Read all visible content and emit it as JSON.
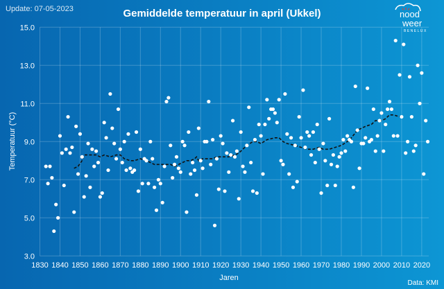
{
  "update": "Update: 07-05-2023",
  "logo": {
    "line1": "nood",
    "line2": "weer",
    "line3": "BENELUX"
  },
  "source": "Data: KMI",
  "colors": {
    "background": "#0a80c4",
    "points": "#ffffff",
    "trend": "#111111",
    "logo_accent": "#e8352b"
  },
  "chart_data": {
    "type": "scatter",
    "title": "Gemiddelde temperatuur in april (Ukkel)",
    "xlabel": "Jaren",
    "ylabel": "Temperatuur (°C)",
    "xlim": [
      1830,
      2023.5
    ],
    "ylim": [
      3.0,
      15.0
    ],
    "grid": true,
    "xticks": [
      "1830",
      "1840",
      "1850",
      "1860",
      "1870",
      "1880",
      "1890",
      "1900",
      "1910",
      "1920",
      "1930",
      "1940",
      "1950",
      "1960",
      "1970",
      "1980",
      "1990",
      "2000",
      "2010",
      "2020"
    ],
    "yticks": [
      "3.0",
      "5.0",
      "7.0",
      "9.0",
      "11.0",
      "13.0",
      "15.0"
    ],
    "points": [
      [
        1833,
        7.7
      ],
      [
        1834,
        6.8
      ],
      [
        1835,
        7.7
      ],
      [
        1836,
        7.1
      ],
      [
        1837,
        4.3
      ],
      [
        1838,
        5.7
      ],
      [
        1839,
        5.0
      ],
      [
        1840,
        9.3
      ],
      [
        1841,
        8.4
      ],
      [
        1842,
        6.7
      ],
      [
        1843,
        8.6
      ],
      [
        1844,
        10.3
      ],
      [
        1845,
        8.4
      ],
      [
        1846,
        8.7
      ],
      [
        1847,
        5.3
      ],
      [
        1848,
        9.8
      ],
      [
        1849,
        7.3
      ],
      [
        1850,
        9.4
      ],
      [
        1851,
        8.2
      ],
      [
        1852,
        6.1
      ],
      [
        1853,
        7.2
      ],
      [
        1854,
        8.9
      ],
      [
        1855,
        6.6
      ],
      [
        1856,
        8.6
      ],
      [
        1857,
        7.7
      ],
      [
        1858,
        8.5
      ],
      [
        1859,
        7.9
      ],
      [
        1860,
        6.1
      ],
      [
        1861,
        6.3
      ],
      [
        1862,
        10.0
      ],
      [
        1863,
        9.2
      ],
      [
        1864,
        7.5
      ],
      [
        1865,
        11.5
      ],
      [
        1866,
        9.7
      ],
      [
        1867,
        8.9
      ],
      [
        1868,
        8.1
      ],
      [
        1869,
        10.7
      ],
      [
        1870,
        8.6
      ],
      [
        1871,
        7.9
      ],
      [
        1872,
        9.0
      ],
      [
        1873,
        7.5
      ],
      [
        1874,
        9.4
      ],
      [
        1875,
        7.6
      ],
      [
        1876,
        7.4
      ],
      [
        1877,
        7.5
      ],
      [
        1878,
        9.5
      ],
      [
        1879,
        6.4
      ],
      [
        1880,
        8.6
      ],
      [
        1881,
        6.8
      ],
      [
        1882,
        8.1
      ],
      [
        1883,
        8.0
      ],
      [
        1884,
        6.8
      ],
      [
        1885,
        9.0
      ],
      [
        1886,
        8.1
      ],
      [
        1887,
        6.6
      ],
      [
        1888,
        5.4
      ],
      [
        1889,
        7.0
      ],
      [
        1890,
        6.8
      ],
      [
        1891,
        5.8
      ],
      [
        1892,
        7.7
      ],
      [
        1893,
        11.1
      ],
      [
        1894,
        11.3
      ],
      [
        1895,
        8.8
      ],
      [
        1896,
        7.1
      ],
      [
        1897,
        7.8
      ],
      [
        1898,
        8.2
      ],
      [
        1899,
        7.6
      ],
      [
        1900,
        7.4
      ],
      [
        1901,
        9.0
      ],
      [
        1902,
        8.8
      ],
      [
        1903,
        5.3
      ],
      [
        1904,
        9.5
      ],
      [
        1905,
        7.3
      ],
      [
        1906,
        7.9
      ],
      [
        1907,
        7.5
      ],
      [
        1908,
        6.2
      ],
      [
        1909,
        9.7
      ],
      [
        1910,
        8.0
      ],
      [
        1911,
        7.6
      ],
      [
        1912,
        9.0
      ],
      [
        1913,
        9.0
      ],
      [
        1914,
        11.1
      ],
      [
        1915,
        7.8
      ],
      [
        1916,
        9.1
      ],
      [
        1917,
        4.6
      ],
      [
        1918,
        8.1
      ],
      [
        1919,
        6.5
      ],
      [
        1920,
        9.3
      ],
      [
        1921,
        8.9
      ],
      [
        1922,
        6.4
      ],
      [
        1923,
        8.4
      ],
      [
        1924,
        7.4
      ],
      [
        1925,
        8.3
      ],
      [
        1926,
        10.1
      ],
      [
        1927,
        8.2
      ],
      [
        1928,
        8.5
      ],
      [
        1929,
        6.0
      ],
      [
        1930,
        9.5
      ],
      [
        1931,
        7.7
      ],
      [
        1932,
        7.4
      ],
      [
        1933,
        8.8
      ],
      [
        1934,
        10.8
      ],
      [
        1935,
        7.9
      ],
      [
        1936,
        6.4
      ],
      [
        1937,
        9.1
      ],
      [
        1938,
        6.3
      ],
      [
        1939,
        9.9
      ],
      [
        1940,
        9.3
      ],
      [
        1941,
        7.3
      ],
      [
        1942,
        9.9
      ],
      [
        1943,
        11.2
      ],
      [
        1944,
        10.2
      ],
      [
        1945,
        10.7
      ],
      [
        1946,
        10.7
      ],
      [
        1947,
        10.5
      ],
      [
        1948,
        10.0
      ],
      [
        1949,
        11.2
      ],
      [
        1950,
        8.0
      ],
      [
        1951,
        7.8
      ],
      [
        1952,
        11.5
      ],
      [
        1953,
        9.4
      ],
      [
        1954,
        7.3
      ],
      [
        1955,
        9.2
      ],
      [
        1956,
        6.6
      ],
      [
        1957,
        8.8
      ],
      [
        1958,
        6.9
      ],
      [
        1959,
        10.3
      ],
      [
        1960,
        9.2
      ],
      [
        1961,
        11.7
      ],
      [
        1962,
        8.7
      ],
      [
        1963,
        9.5
      ],
      [
        1964,
        9.3
      ],
      [
        1965,
        8.3
      ],
      [
        1966,
        9.5
      ],
      [
        1967,
        7.9
      ],
      [
        1968,
        9.9
      ],
      [
        1969,
        8.6
      ],
      [
        1970,
        6.3
      ],
      [
        1971,
        8.9
      ],
      [
        1972,
        8.0
      ],
      [
        1973,
        6.7
      ],
      [
        1974,
        10.2
      ],
      [
        1975,
        7.8
      ],
      [
        1976,
        8.3
      ],
      [
        1977,
        6.7
      ],
      [
        1978,
        7.7
      ],
      [
        1979,
        8.2
      ],
      [
        1980,
        8.4
      ],
      [
        1981,
        9.1
      ],
      [
        1982,
        8.5
      ],
      [
        1983,
        9.3
      ],
      [
        1984,
        9.1
      ],
      [
        1985,
        9.0
      ],
      [
        1986,
        6.6
      ],
      [
        1987,
        11.9
      ],
      [
        1988,
        9.6
      ],
      [
        1989,
        7.6
      ],
      [
        1990,
        8.9
      ],
      [
        1991,
        8.9
      ],
      [
        1992,
        9.2
      ],
      [
        1993,
        11.8
      ],
      [
        1994,
        9.0
      ],
      [
        1995,
        9.1
      ],
      [
        1996,
        10.7
      ],
      [
        1997,
        8.5
      ],
      [
        1998,
        9.3
      ],
      [
        1999,
        10.1
      ],
      [
        2000,
        10.5
      ],
      [
        2001,
        8.5
      ],
      [
        2002,
        9.9
      ],
      [
        2003,
        10.7
      ],
      [
        2004,
        11.1
      ],
      [
        2005,
        10.7
      ],
      [
        2006,
        9.3
      ],
      [
        2007,
        14.3
      ],
      [
        2008,
        9.3
      ],
      [
        2009,
        12.5
      ],
      [
        2010,
        10.3
      ],
      [
        2011,
        14.1
      ],
      [
        2012,
        8.4
      ],
      [
        2013,
        9.0
      ],
      [
        2014,
        12.4
      ],
      [
        2015,
        10.3
      ],
      [
        2016,
        8.5
      ],
      [
        2017,
        8.8
      ],
      [
        2018,
        13.0
      ],
      [
        2019,
        11.0
      ],
      [
        2020,
        12.6
      ],
      [
        2021,
        7.3
      ],
      [
        2022,
        10.1
      ],
      [
        2023,
        9.0
      ]
    ],
    "trend": [
      [
        1847,
        7.6
      ],
      [
        1849,
        7.7
      ],
      [
        1851,
        8.0
      ],
      [
        1852,
        8.3
      ],
      [
        1855,
        8.3
      ],
      [
        1858,
        8.3
      ],
      [
        1860,
        8.2
      ],
      [
        1862,
        8.3
      ],
      [
        1865,
        8.2
      ],
      [
        1868,
        8.3
      ],
      [
        1870,
        8.3
      ],
      [
        1872,
        8.1
      ],
      [
        1875,
        8.0
      ],
      [
        1877,
        8.0
      ],
      [
        1880,
        8.1
      ],
      [
        1883,
        8.0
      ],
      [
        1885,
        7.9
      ],
      [
        1887,
        7.8
      ],
      [
        1891,
        7.8
      ],
      [
        1895,
        7.8
      ],
      [
        1897,
        7.7
      ],
      [
        1899,
        7.8
      ],
      [
        1901,
        7.9
      ],
      [
        1903,
        8.0
      ],
      [
        1905,
        8.0
      ],
      [
        1907,
        8.1
      ],
      [
        1908,
        8.2
      ],
      [
        1909,
        8.0
      ],
      [
        1911,
        8.1
      ],
      [
        1916,
        8.1
      ],
      [
        1918,
        8.2
      ],
      [
        1924,
        8.2
      ],
      [
        1927,
        8.3
      ],
      [
        1929,
        8.4
      ],
      [
        1931,
        8.6
      ],
      [
        1933,
        8.8
      ],
      [
        1936,
        9.0
      ],
      [
        1938,
        9.0
      ],
      [
        1940,
        8.9
      ],
      [
        1943,
        9.1
      ],
      [
        1947,
        9.2
      ],
      [
        1949,
        9.2
      ],
      [
        1951,
        9.0
      ],
      [
        1953,
        8.9
      ],
      [
        1957,
        8.8
      ],
      [
        1960,
        8.7
      ],
      [
        1963,
        8.6
      ],
      [
        1966,
        8.6
      ],
      [
        1969,
        8.7
      ],
      [
        1971,
        8.6
      ],
      [
        1974,
        8.6
      ],
      [
        1977,
        8.7
      ],
      [
        1980,
        8.8
      ],
      [
        1983,
        9.0
      ],
      [
        1985,
        9.2
      ],
      [
        1988,
        9.6
      ],
      [
        1990,
        9.7
      ],
      [
        1992,
        9.8
      ],
      [
        1995,
        9.9
      ],
      [
        1997,
        10.1
      ],
      [
        2000,
        10.1
      ],
      [
        2002,
        10.2
      ],
      [
        2004,
        10.4
      ],
      [
        2006,
        10.4
      ],
      [
        2009,
        10.3
      ]
    ]
  }
}
